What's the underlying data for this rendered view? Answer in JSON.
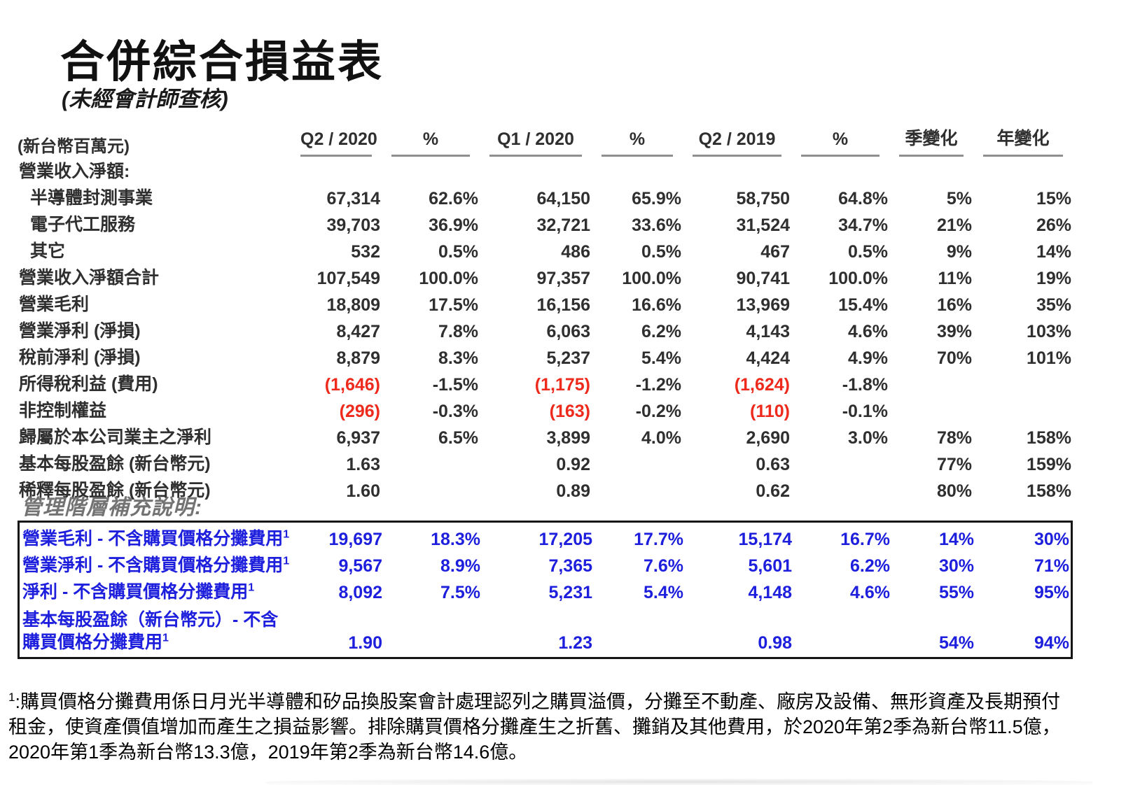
{
  "page": {
    "title": "合併綜合損益表",
    "subtitle": "(未經會計師查核)"
  },
  "colors": {
    "text_dark": "#2f2f2f",
    "negative_red": "#ee2a1c",
    "supplement_blue": "#1d1fdd",
    "heading_gray": "#737373",
    "underline_gray": "#8f8f8f"
  },
  "table": {
    "unit_label": "(新台幣百萬元)",
    "columns": [
      "Q2 / 2020",
      "%",
      "Q1 / 2020",
      "%",
      "Q2 / 2019",
      "%",
      "季變化",
      "年變化"
    ],
    "rows": [
      {
        "label": "營業收入淨額:",
        "section": true,
        "indent": false,
        "values": [
          "",
          "",
          "",
          "",
          "",
          "",
          "",
          ""
        ]
      },
      {
        "label": "半導體封測事業",
        "section": false,
        "indent": true,
        "values": [
          "67,314",
          "62.6%",
          "64,150",
          "65.9%",
          "58,750",
          "64.8%",
          "5%",
          "15%"
        ]
      },
      {
        "label": "電子代工服務",
        "section": false,
        "indent": true,
        "values": [
          "39,703",
          "36.9%",
          "32,721",
          "33.6%",
          "31,524",
          "34.7%",
          "21%",
          "26%"
        ]
      },
      {
        "label": "其它",
        "section": false,
        "indent": true,
        "values": [
          "532",
          "0.5%",
          "486",
          "0.5%",
          "467",
          "0.5%",
          "9%",
          "14%"
        ]
      },
      {
        "label": "營業收入淨額合計",
        "section": false,
        "indent": false,
        "values": [
          "107,549",
          "100.0%",
          "97,357",
          "100.0%",
          "90,741",
          "100.0%",
          "11%",
          "19%"
        ]
      },
      {
        "label": "營業毛利",
        "section": false,
        "indent": false,
        "values": [
          "18,809",
          "17.5%",
          "16,156",
          "16.6%",
          "13,969",
          "15.4%",
          "16%",
          "35%"
        ]
      },
      {
        "label": "營業淨利 (淨損)",
        "section": false,
        "indent": false,
        "values": [
          "8,427",
          "7.8%",
          "6,063",
          "6.2%",
          "4,143",
          "4.6%",
          "39%",
          "103%"
        ]
      },
      {
        "label": "稅前淨利 (淨損)",
        "section": false,
        "indent": false,
        "values": [
          "8,879",
          "8.3%",
          "5,237",
          "5.4%",
          "4,424",
          "4.9%",
          "70%",
          "101%"
        ]
      },
      {
        "label": "所得稅利益 (費用)",
        "section": false,
        "indent": false,
        "values": [
          "(1,646)",
          "-1.5%",
          "(1,175)",
          "-1.2%",
          "(1,624)",
          "-1.8%",
          "",
          ""
        ]
      },
      {
        "label": "非控制權益",
        "section": false,
        "indent": false,
        "values": [
          "(296)",
          "-0.3%",
          "(163)",
          "-0.2%",
          "(110)",
          "-0.1%",
          "",
          ""
        ]
      },
      {
        "label": "歸屬於本公司業主之淨利",
        "section": false,
        "indent": false,
        "values": [
          "6,937",
          "6.5%",
          "3,899",
          "4.0%",
          "2,690",
          "3.0%",
          "78%",
          "158%"
        ]
      },
      {
        "label": "基本每股盈餘 (新台幣元)",
        "section": false,
        "indent": false,
        "values": [
          "1.63",
          "",
          "0.92",
          "",
          "0.63",
          "",
          "77%",
          "159%"
        ]
      },
      {
        "label": "稀釋每股盈餘 (新台幣元)",
        "section": false,
        "indent": false,
        "values": [
          "1.60",
          "",
          "0.89",
          "",
          "0.62",
          "",
          "80%",
          "158%"
        ]
      }
    ]
  },
  "supplement": {
    "heading": "管理階層補充說明:",
    "rows": [
      {
        "label": "營業毛利 - 不含購買價格分攤費用",
        "sup": "1",
        "twoline": false,
        "values": [
          "19,697",
          "18.3%",
          "17,205",
          "17.7%",
          "15,174",
          "16.7%",
          "14%",
          "30%"
        ]
      },
      {
        "label": "營業淨利 - 不含購買價格分攤費用",
        "sup": "1",
        "twoline": false,
        "values": [
          "9,567",
          "8.9%",
          "7,365",
          "7.6%",
          "5,601",
          "6.2%",
          "30%",
          "71%"
        ]
      },
      {
        "label": "淨利 - 不含購買價格分攤費用",
        "sup": "1",
        "twoline": false,
        "values": [
          "8,092",
          "7.5%",
          "5,231",
          "5.4%",
          "4,148",
          "4.6%",
          "55%",
          "95%"
        ]
      },
      {
        "label": "基本每股盈餘（新台幣元）- 不含\n購買價格分攤費用",
        "sup": "1",
        "twoline": true,
        "values": [
          "1.90",
          "",
          "1.23",
          "",
          "0.98",
          "",
          "54%",
          "94%"
        ]
      }
    ]
  },
  "footnote": {
    "sup": "1",
    "text": ":購買價格分攤費用係日月光半導體和矽品換股案會計處理認列之購買溢價，分攤至不動產、廠房及設備、無形資產及長期預付租金，使資產價值增加而產生之損益影響。排除購買價格分攤產生之折舊、攤銷及其他費用，於2020年第2季為新台幣11.5億，2020年第1季為新台幣13.3億，2019年第2季為新台幣14.6億。"
  }
}
